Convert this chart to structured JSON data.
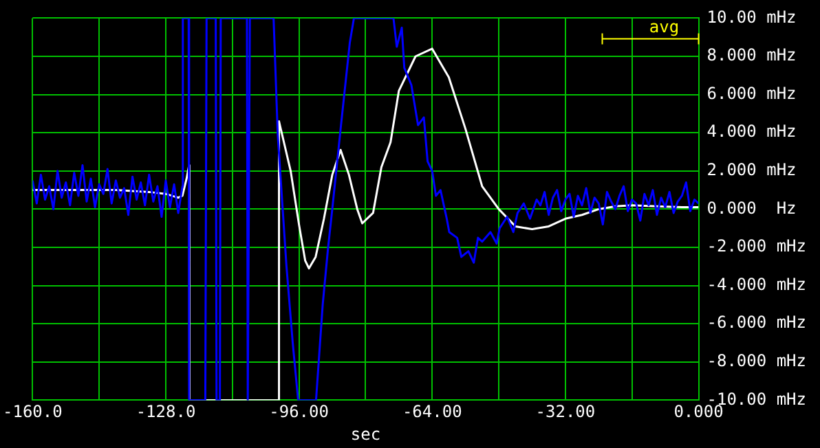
{
  "chart_data": {
    "type": "line",
    "xlabel": "sec",
    "annotations": [
      "avg"
    ],
    "legend": false,
    "grid": true,
    "marker": "none",
    "line_style": "solid",
    "xlim": [
      -160,
      0
    ],
    "xticks": [
      {
        "value": -160,
        "label": "-160.0"
      },
      {
        "value": -144,
        "label": null
      },
      {
        "value": -128,
        "label": "-128.0"
      },
      {
        "value": -112,
        "label": null
      },
      {
        "value": -96,
        "label": "-96.00"
      },
      {
        "value": -80,
        "label": null
      },
      {
        "value": -64,
        "label": "-64.00"
      },
      {
        "value": -48,
        "label": null
      },
      {
        "value": -32,
        "label": "-32.00"
      },
      {
        "value": -16,
        "label": null
      },
      {
        "value": 0,
        "label": "0.000"
      }
    ],
    "ylim": [
      -10,
      10
    ],
    "yticks": [
      {
        "value": -10,
        "label": "-10.00 mHz"
      },
      {
        "value": -8,
        "label": "-8.000 mHz"
      },
      {
        "value": -6,
        "label": "-6.000 mHz"
      },
      {
        "value": -4,
        "label": "-4.000 mHz"
      },
      {
        "value": -2,
        "label": "-2.000 mHz"
      },
      {
        "value": 0,
        "label": "0.000  Hz"
      },
      {
        "value": 2,
        "label": "2.000 mHz"
      },
      {
        "value": 4,
        "label": "4.000 mHz"
      },
      {
        "value": 6,
        "label": "6.000 mHz"
      },
      {
        "value": 8,
        "label": "8.000 mHz"
      },
      {
        "value": 10,
        "label": "10.00 mHz"
      }
    ],
    "series": [
      {
        "color": "#0000ff",
        "x": [
          -160,
          -159,
          -158,
          -157,
          -156,
          -155,
          -154,
          -153,
          -152,
          -151,
          -150,
          -149,
          -148,
          -147,
          -146,
          -145,
          -144,
          -143,
          -142,
          -141,
          -140,
          -139,
          -138,
          -137,
          -136,
          -135,
          -134,
          -133,
          -132,
          -131,
          -130,
          -129,
          -128,
          -127,
          -126,
          -125,
          -124,
          -123.9,
          -122.5,
          -122.4,
          -118.5,
          -118.2,
          -116,
          -115.8,
          -115,
          -114.8,
          -108.5,
          -108.3,
          -108,
          -107.8,
          -102.1,
          -101.1,
          -99,
          -97.5,
          -96.2,
          -91.9,
          -90.3,
          -89,
          -88,
          -86,
          -83.8,
          -82.8,
          -73.3,
          -72.5,
          -71.3,
          -70.7,
          -69,
          -67.4,
          -66,
          -65.1,
          -64,
          -63.1,
          -62,
          -60.5,
          -59.9,
          -58,
          -57,
          -55.3,
          -54,
          -53,
          -52,
          -50,
          -48.5,
          -47.8,
          -46,
          -44.5,
          -43.5,
          -42,
          -40.5,
          -38.9,
          -38,
          -37,
          -36,
          -35,
          -34,
          -33,
          -32,
          -31,
          -30,
          -29,
          -28,
          -27,
          -26,
          -25,
          -24,
          -23,
          -22,
          -21,
          -20,
          -19,
          -18,
          -17,
          -16,
          -15,
          -14,
          -13,
          -12,
          -11,
          -10,
          -9,
          -8,
          -7,
          -6,
          -5,
          -4,
          -3,
          -2,
          -1,
          0
        ],
        "values": [
          1.5,
          0.3,
          1.8,
          0.5,
          1.2,
          0.0,
          2.0,
          0.6,
          1.4,
          0.2,
          1.9,
          0.7,
          2.3,
          0.4,
          1.6,
          0.1,
          1.3,
          0.8,
          2.1,
          0.3,
          1.5,
          0.6,
          1.1,
          -0.3,
          1.7,
          0.5,
          1.4,
          0.2,
          1.8,
          0.4,
          1.2,
          -0.4,
          1.5,
          0.1,
          1.3,
          -0.2,
          1.2,
          10,
          10,
          -10,
          -10,
          10,
          10,
          -10,
          -10,
          10,
          10,
          -10,
          -10,
          10,
          10,
          3.9,
          -3,
          -7,
          -10,
          -10,
          -5,
          -2,
          0,
          4.2,
          8.7,
          10,
          10,
          8.5,
          9.5,
          7.4,
          6.5,
          4.4,
          4.8,
          2.5,
          2.0,
          0.7,
          1.0,
          -0.5,
          -1.2,
          -1.5,
          -2.5,
          -2.2,
          -2.8,
          -1.5,
          -1.7,
          -1.2,
          -1.8,
          -1.0,
          -0.4,
          -1.2,
          -0.2,
          0.3,
          -0.5,
          0.5,
          0.2,
          0.9,
          -0.3,
          0.6,
          1.0,
          -0.1,
          0.5,
          0.8,
          -0.4,
          0.7,
          0.2,
          1.1,
          -0.2,
          0.6,
          0.3,
          -0.8,
          0.9,
          0.4,
          0.0,
          0.7,
          1.2,
          -0.1,
          0.5,
          0.3,
          -0.6,
          0.8,
          0.2,
          1.0,
          -0.3,
          0.6,
          0.1,
          0.9,
          -0.2,
          0.4,
          0.7,
          1.4,
          -0.1,
          0.5,
          0.3
        ]
      },
      {
        "color": "#ffffff",
        "x": [
          -160,
          -150,
          -140,
          -132,
          -128,
          -125,
          -124,
          -123,
          -122.4,
          -122.3,
          -101,
          -100.8,
          -98,
          -96,
          -94.5,
          -93.6,
          -92,
          -90,
          -88,
          -86,
          -84,
          -82,
          -80.8,
          -78.2,
          -76.2,
          -74,
          -72,
          -68,
          -64,
          -60,
          -56,
          -52,
          -48,
          -44,
          -40,
          -36,
          -32,
          -28,
          -24,
          -20,
          -16,
          -10,
          -4,
          0
        ],
        "values": [
          1.0,
          1.0,
          1.0,
          0.9,
          0.8,
          0.6,
          0.7,
          1.6,
          2.3,
          -10,
          -10,
          4.6,
          2,
          -0.8,
          -2.7,
          -3.1,
          -2.5,
          -0.5,
          1.8,
          3.1,
          1.8,
          0,
          -0.74,
          -0.2,
          2.2,
          3.5,
          6.2,
          8.0,
          8.4,
          6.9,
          4.2,
          1.2,
          0,
          -0.9,
          -1.05,
          -0.9,
          -0.5,
          -0.3,
          0,
          0.15,
          0.2,
          0.15,
          0.1,
          0.1
        ]
      }
    ]
  }
}
